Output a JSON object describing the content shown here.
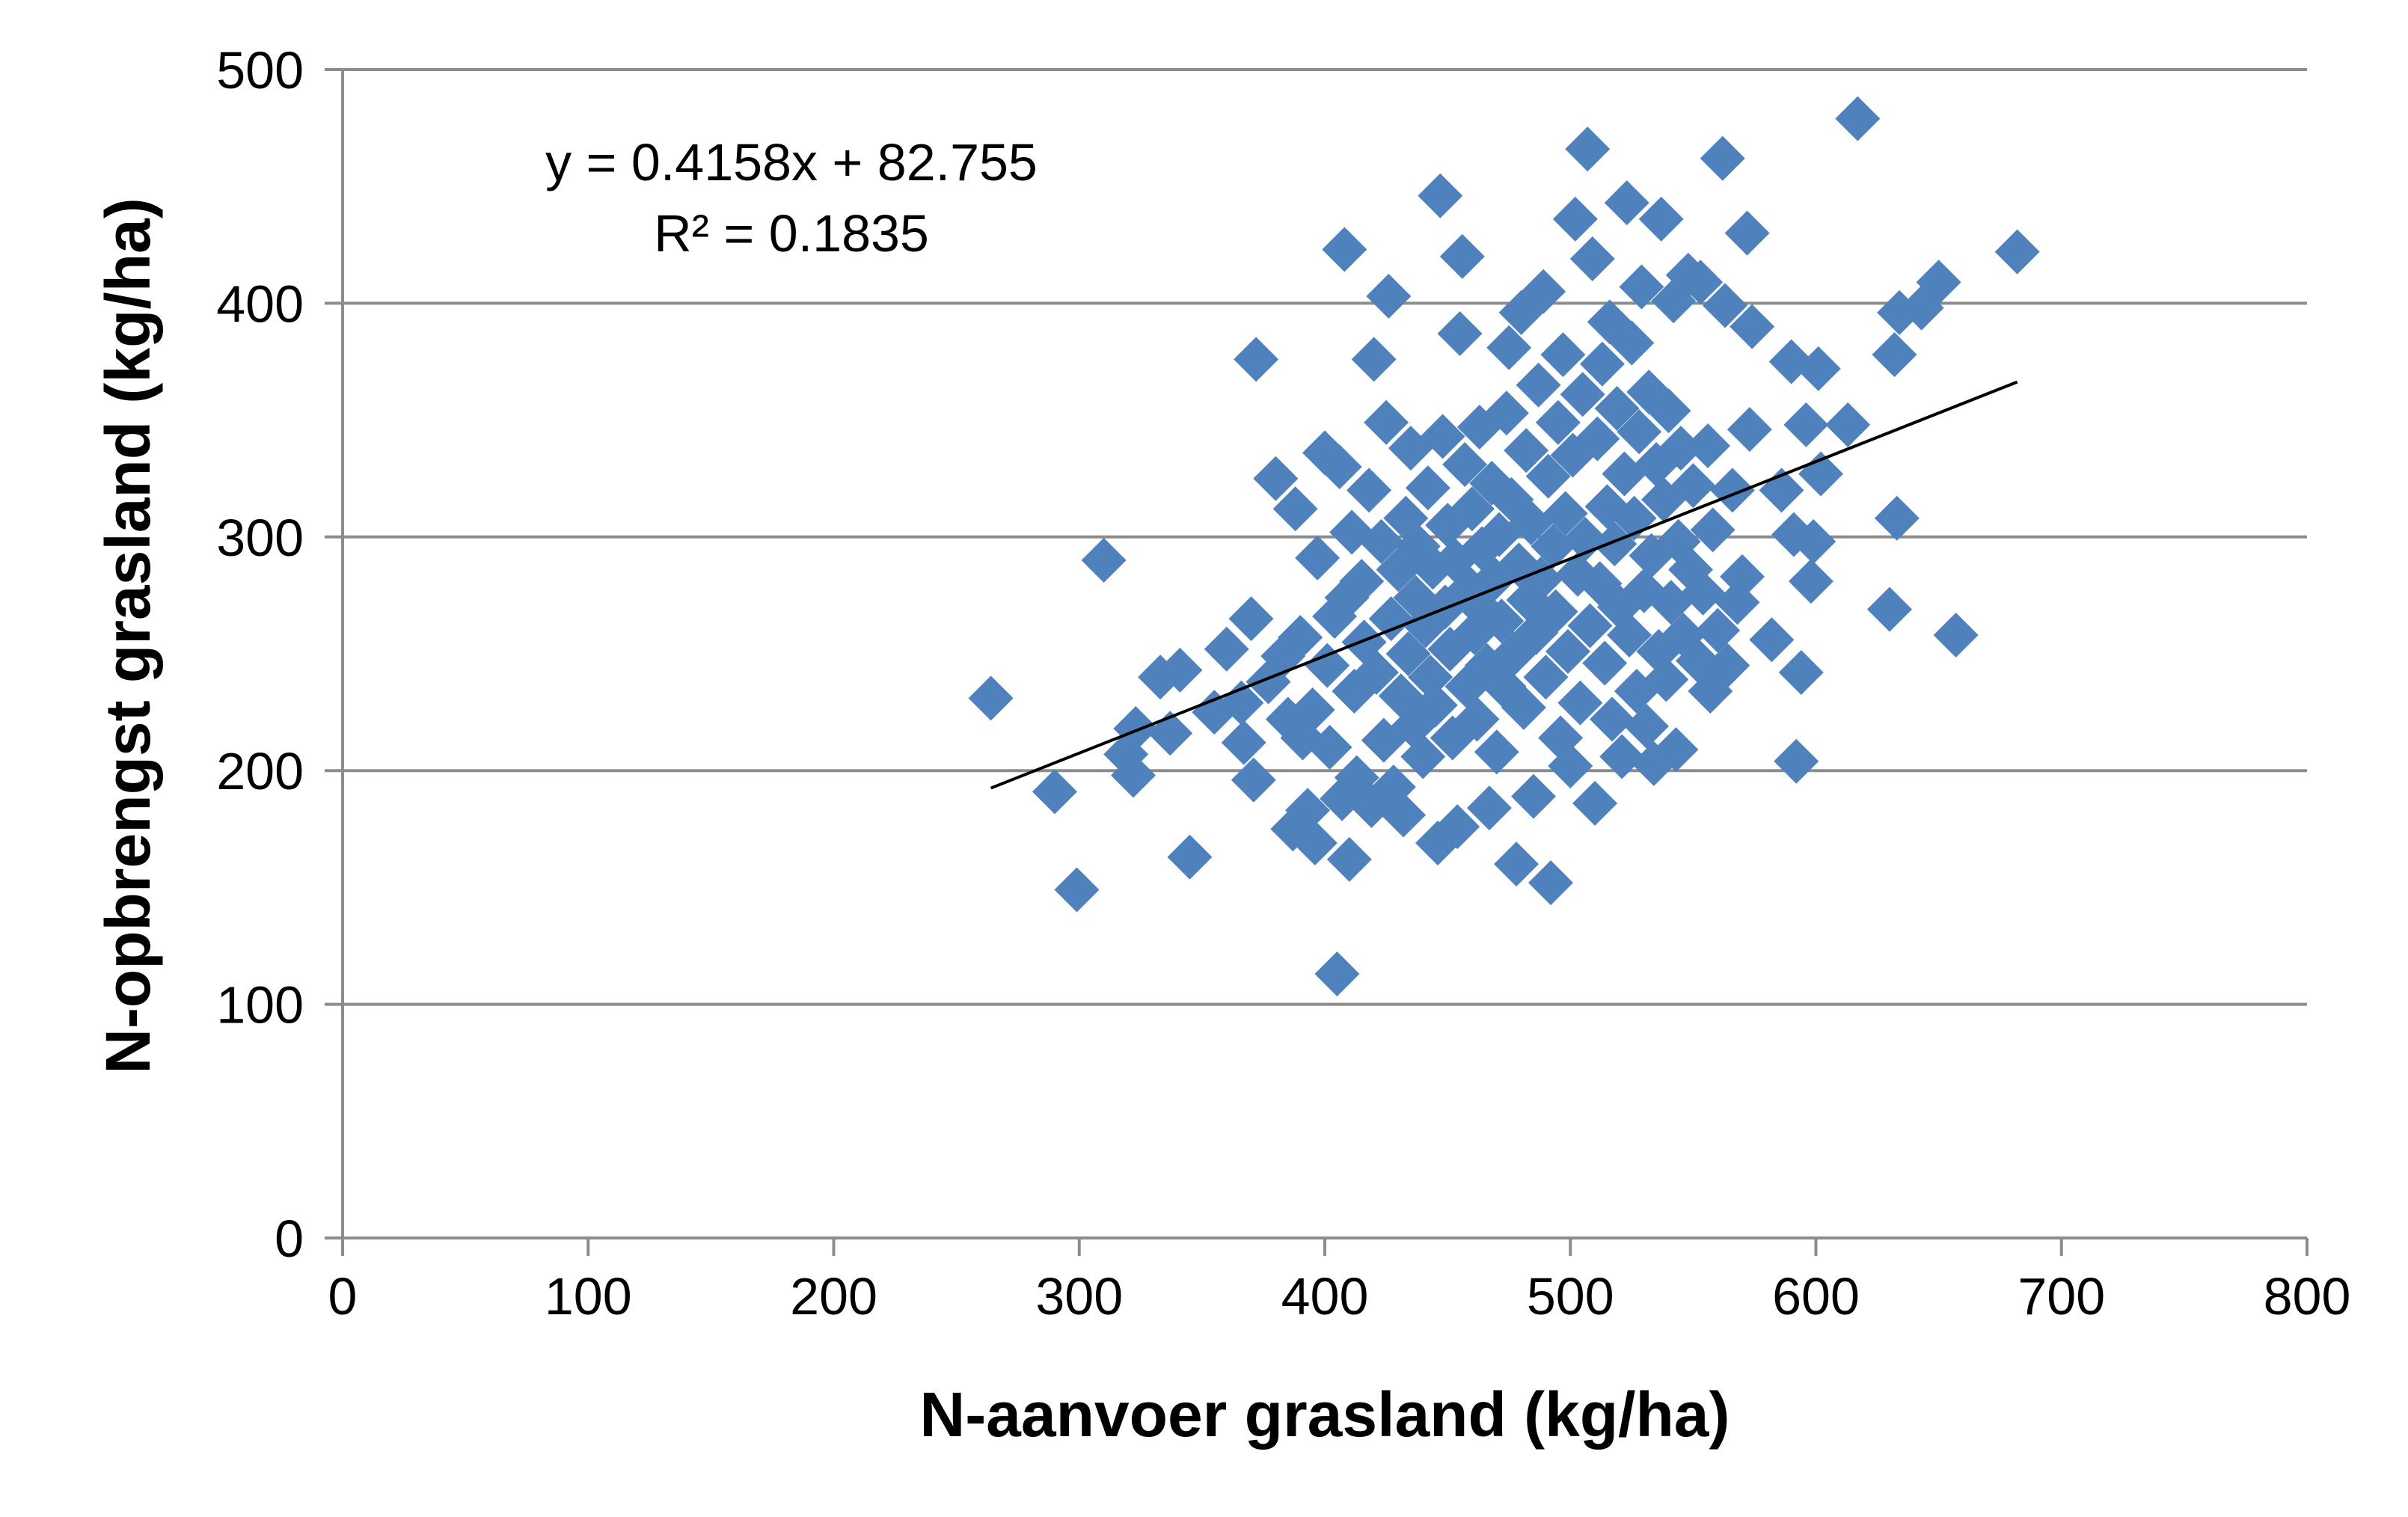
{
  "chart_data": {
    "type": "scatter",
    "title": "",
    "xlabel": "N-aanvoer grasland (kg/ha)",
    "ylabel": "N-opbrengst grasland (kg/ha)",
    "xlim": [
      0,
      800
    ],
    "ylim": [
      0,
      500
    ],
    "xticks": [
      "0",
      "100",
      "200",
      "300",
      "400",
      "500",
      "600",
      "700",
      "800"
    ],
    "yticks": [
      "0",
      "100",
      "200",
      "300",
      "400",
      "500"
    ],
    "grid": "horizontal",
    "legend": "none",
    "marker": "diamond",
    "marker_color": "#4F81BD",
    "trendline": {
      "type": "linear",
      "slope": 0.4158,
      "intercept": 82.755,
      "x_range": [
        264,
        682
      ],
      "color": "#000000",
      "equation_label": "y = 0.4158x + 82.755",
      "r2_label": "R² = 0.1835"
    },
    "points": [
      [
        264,
        231
      ],
      [
        290,
        191
      ],
      [
        299,
        149
      ],
      [
        310,
        290
      ],
      [
        319,
        207
      ],
      [
        322,
        198
      ],
      [
        323,
        218
      ],
      [
        333,
        240
      ],
      [
        337,
        216
      ],
      [
        341,
        243
      ],
      [
        345,
        163
      ],
      [
        355,
        225
      ],
      [
        360,
        252
      ],
      [
        366,
        229
      ],
      [
        367,
        212
      ],
      [
        370,
        265
      ],
      [
        371,
        196
      ],
      [
        372,
        376
      ],
      [
        377,
        238
      ],
      [
        380,
        325
      ],
      [
        383,
        249
      ],
      [
        385,
        222
      ],
      [
        387,
        175
      ],
      [
        388,
        312
      ],
      [
        390,
        257
      ],
      [
        391,
        214
      ],
      [
        393,
        183
      ],
      [
        395,
        226
      ],
      [
        396,
        169
      ],
      [
        397,
        291
      ],
      [
        400,
        336
      ],
      [
        401,
        245
      ],
      [
        402,
        210
      ],
      [
        404,
        266
      ],
      [
        405,
        113
      ],
      [
        406,
        330
      ],
      [
        407,
        188
      ],
      [
        408,
        423
      ],
      [
        409,
        274
      ],
      [
        410,
        162
      ],
      [
        411,
        302
      ],
      [
        412,
        234
      ],
      [
        413,
        197
      ],
      [
        415,
        281
      ],
      [
        416,
        255
      ],
      [
        418,
        320
      ],
      [
        419,
        185
      ],
      [
        420,
        376
      ],
      [
        421,
        242
      ],
      [
        423,
        298
      ],
      [
        424,
        213
      ],
      [
        425,
        349
      ],
      [
        426,
        403
      ],
      [
        427,
        265
      ],
      [
        428,
        193
      ],
      [
        430,
        286
      ],
      [
        431,
        232
      ],
      [
        432,
        181
      ],
      [
        433,
        308
      ],
      [
        434,
        250
      ],
      [
        435,
        338
      ],
      [
        436,
        219
      ],
      [
        437,
        274
      ],
      [
        438,
        296
      ],
      [
        440,
        206
      ],
      [
        441,
        262
      ],
      [
        442,
        321
      ],
      [
        443,
        240
      ],
      [
        444,
        287
      ],
      [
        445,
        228
      ],
      [
        446,
        169
      ],
      [
        447,
        446
      ],
      [
        448,
        343
      ],
      [
        449,
        270
      ],
      [
        450,
        305
      ],
      [
        451,
        252
      ],
      [
        452,
        214
      ],
      [
        453,
        290
      ],
      [
        454,
        176
      ],
      [
        455,
        387
      ],
      [
        456,
        420
      ],
      [
        457,
        331
      ],
      [
        458,
        236
      ],
      [
        459,
        278
      ],
      [
        460,
        312
      ],
      [
        461,
        259
      ],
      [
        462,
        222
      ],
      [
        463,
        347
      ],
      [
        464,
        295
      ],
      [
        465,
        268
      ],
      [
        466,
        245
      ],
      [
        467,
        184
      ],
      [
        468,
        323
      ],
      [
        469,
        282
      ],
      [
        470,
        208
      ],
      [
        471,
        301
      ],
      [
        472,
        264
      ],
      [
        473,
        236
      ],
      [
        474,
        353
      ],
      [
        475,
        381
      ],
      [
        476,
        316
      ],
      [
        477,
        250
      ],
      [
        478,
        160
      ],
      [
        479,
        288
      ],
      [
        480,
        396
      ],
      [
        481,
        227
      ],
      [
        482,
        337
      ],
      [
        483,
        273
      ],
      [
        484,
        306
      ],
      [
        485,
        189
      ],
      [
        486,
        259
      ],
      [
        487,
        365
      ],
      [
        488,
        282
      ],
      [
        489,
        405
      ],
      [
        490,
        240
      ],
      [
        491,
        326
      ],
      [
        492,
        152
      ],
      [
        493,
        296
      ],
      [
        494,
        268
      ],
      [
        495,
        349
      ],
      [
        496,
        214
      ],
      [
        497,
        378
      ],
      [
        498,
        310
      ],
      [
        499,
        251
      ],
      [
        500,
        202
      ],
      [
        501,
        335
      ],
      [
        502,
        436
      ],
      [
        503,
        284
      ],
      [
        504,
        229
      ],
      [
        505,
        361
      ],
      [
        506,
        299
      ],
      [
        507,
        466
      ],
      [
        508,
        262
      ],
      [
        509,
        419
      ],
      [
        510,
        186
      ],
      [
        511,
        342
      ],
      [
        512,
        280
      ],
      [
        513,
        374
      ],
      [
        514,
        246
      ],
      [
        515,
        313
      ],
      [
        516,
        392
      ],
      [
        517,
        222
      ],
      [
        518,
        297
      ],
      [
        519,
        355
      ],
      [
        520,
        270
      ],
      [
        521,
        206
      ],
      [
        522,
        327
      ],
      [
        523,
        443
      ],
      [
        524,
        258
      ],
      [
        525,
        383
      ],
      [
        526,
        308
      ],
      [
        527,
        234
      ],
      [
        528,
        345
      ],
      [
        529,
        407
      ],
      [
        530,
        277
      ],
      [
        531,
        219
      ],
      [
        532,
        362
      ],
      [
        533,
        292
      ],
      [
        534,
        203
      ],
      [
        535,
        331
      ],
      [
        536,
        251
      ],
      [
        537,
        436
      ],
      [
        538,
        316
      ],
      [
        539,
        239
      ],
      [
        540,
        354
      ],
      [
        541,
        272
      ],
      [
        542,
        401
      ],
      [
        543,
        209
      ],
      [
        544,
        298
      ],
      [
        545,
        338
      ],
      [
        546,
        258
      ],
      [
        548,
        412
      ],
      [
        549,
        286
      ],
      [
        550,
        322
      ],
      [
        552,
        247
      ],
      [
        553,
        409
      ],
      [
        554,
        276
      ],
      [
        556,
        339
      ],
      [
        557,
        234
      ],
      [
        558,
        303
      ],
      [
        560,
        260
      ],
      [
        562,
        462
      ],
      [
        563,
        399
      ],
      [
        564,
        245
      ],
      [
        566,
        320
      ],
      [
        568,
        272
      ],
      [
        570,
        283
      ],
      [
        572,
        430
      ],
      [
        573,
        346
      ],
      [
        574,
        390
      ],
      [
        582,
        256
      ],
      [
        586,
        320
      ],
      [
        590,
        375
      ],
      [
        591,
        301
      ],
      [
        592,
        204
      ],
      [
        594,
        242
      ],
      [
        596,
        348
      ],
      [
        598,
        281
      ],
      [
        599,
        298
      ],
      [
        601,
        372
      ],
      [
        602,
        327
      ],
      [
        613,
        348
      ],
      [
        617,
        479
      ],
      [
        630,
        269
      ],
      [
        632,
        378
      ],
      [
        633,
        308
      ],
      [
        634,
        396
      ],
      [
        643,
        398
      ],
      [
        650,
        409
      ],
      [
        657,
        258
      ],
      [
        682,
        422
      ]
    ]
  }
}
